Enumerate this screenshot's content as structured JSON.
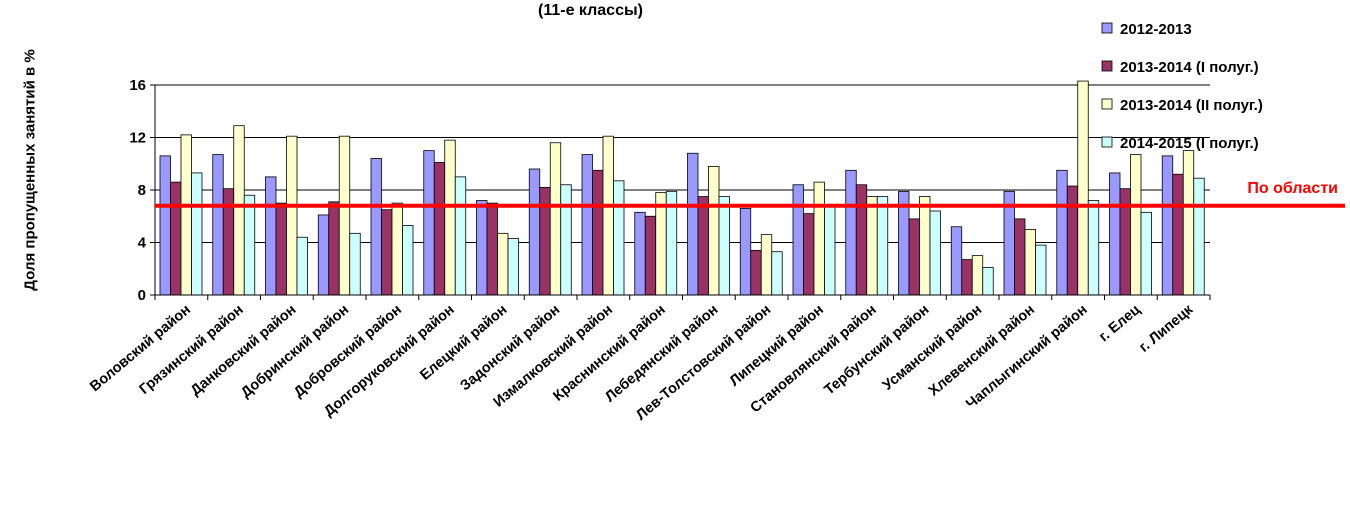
{
  "chart_data": {
    "type": "bar",
    "title": "(11-е классы)",
    "ylabel": "Доля пропущенных занятий в %",
    "xlabel": "",
    "ylim": [
      0,
      16
    ],
    "yticks": [
      "0",
      "4",
      "8",
      "12",
      "16"
    ],
    "grid": true,
    "legend_position": "right",
    "categories": [
      "Воловский район",
      "Грязинский район",
      "Данковский район",
      "Добринский район",
      "Добровский район",
      "Долгоруковский район",
      "Елецкий район",
      "Задонский район",
      "Измалковский район",
      "Краснинский район",
      "Лебедянский район",
      "Лев-Толстовский район",
      "Липецкий район",
      "Становлянский район",
      "Тербунский район",
      "Усманский район",
      "Хлевенский район",
      "Чаплыгинский район",
      "г. Елец",
      "г. Липецк"
    ],
    "series": [
      {
        "name": "2012-2013",
        "color": "#9999ff",
        "values": [
          10.6,
          10.7,
          9.0,
          6.1,
          10.4,
          11.0,
          7.2,
          9.6,
          10.7,
          6.3,
          10.8,
          6.6,
          8.4,
          9.5,
          7.9,
          5.2,
          7.9,
          9.5,
          9.3,
          10.6
        ]
      },
      {
        "name": "2013-2014 (I полуг.)",
        "color": "#993366",
        "values": [
          8.6,
          8.1,
          7.0,
          7.1,
          6.5,
          10.1,
          7.0,
          8.2,
          9.5,
          6.0,
          7.5,
          3.4,
          6.2,
          8.4,
          5.8,
          2.7,
          5.8,
          8.3,
          8.1,
          9.2
        ]
      },
      {
        "name": "2013-2014 (II полуг.)",
        "color": "#ffffcc",
        "values": [
          12.2,
          12.9,
          12.1,
          12.1,
          7.0,
          11.8,
          4.7,
          11.6,
          12.1,
          7.8,
          9.8,
          4.6,
          8.6,
          7.5,
          7.5,
          3.0,
          5.0,
          16.3,
          10.7,
          11.0
        ]
      },
      {
        "name": "2014-2015 (I полуг.)",
        "color": "#ccffff",
        "values": [
          9.3,
          7.6,
          4.4,
          4.7,
          5.3,
          9.0,
          4.3,
          8.4,
          8.7,
          7.9,
          7.5,
          3.3,
          6.9,
          7.5,
          6.4,
          2.1,
          3.8,
          7.2,
          6.3,
          8.9
        ]
      }
    ],
    "reference_line": {
      "label": "По области",
      "value": 6.8,
      "color": "#ff0000"
    }
  }
}
